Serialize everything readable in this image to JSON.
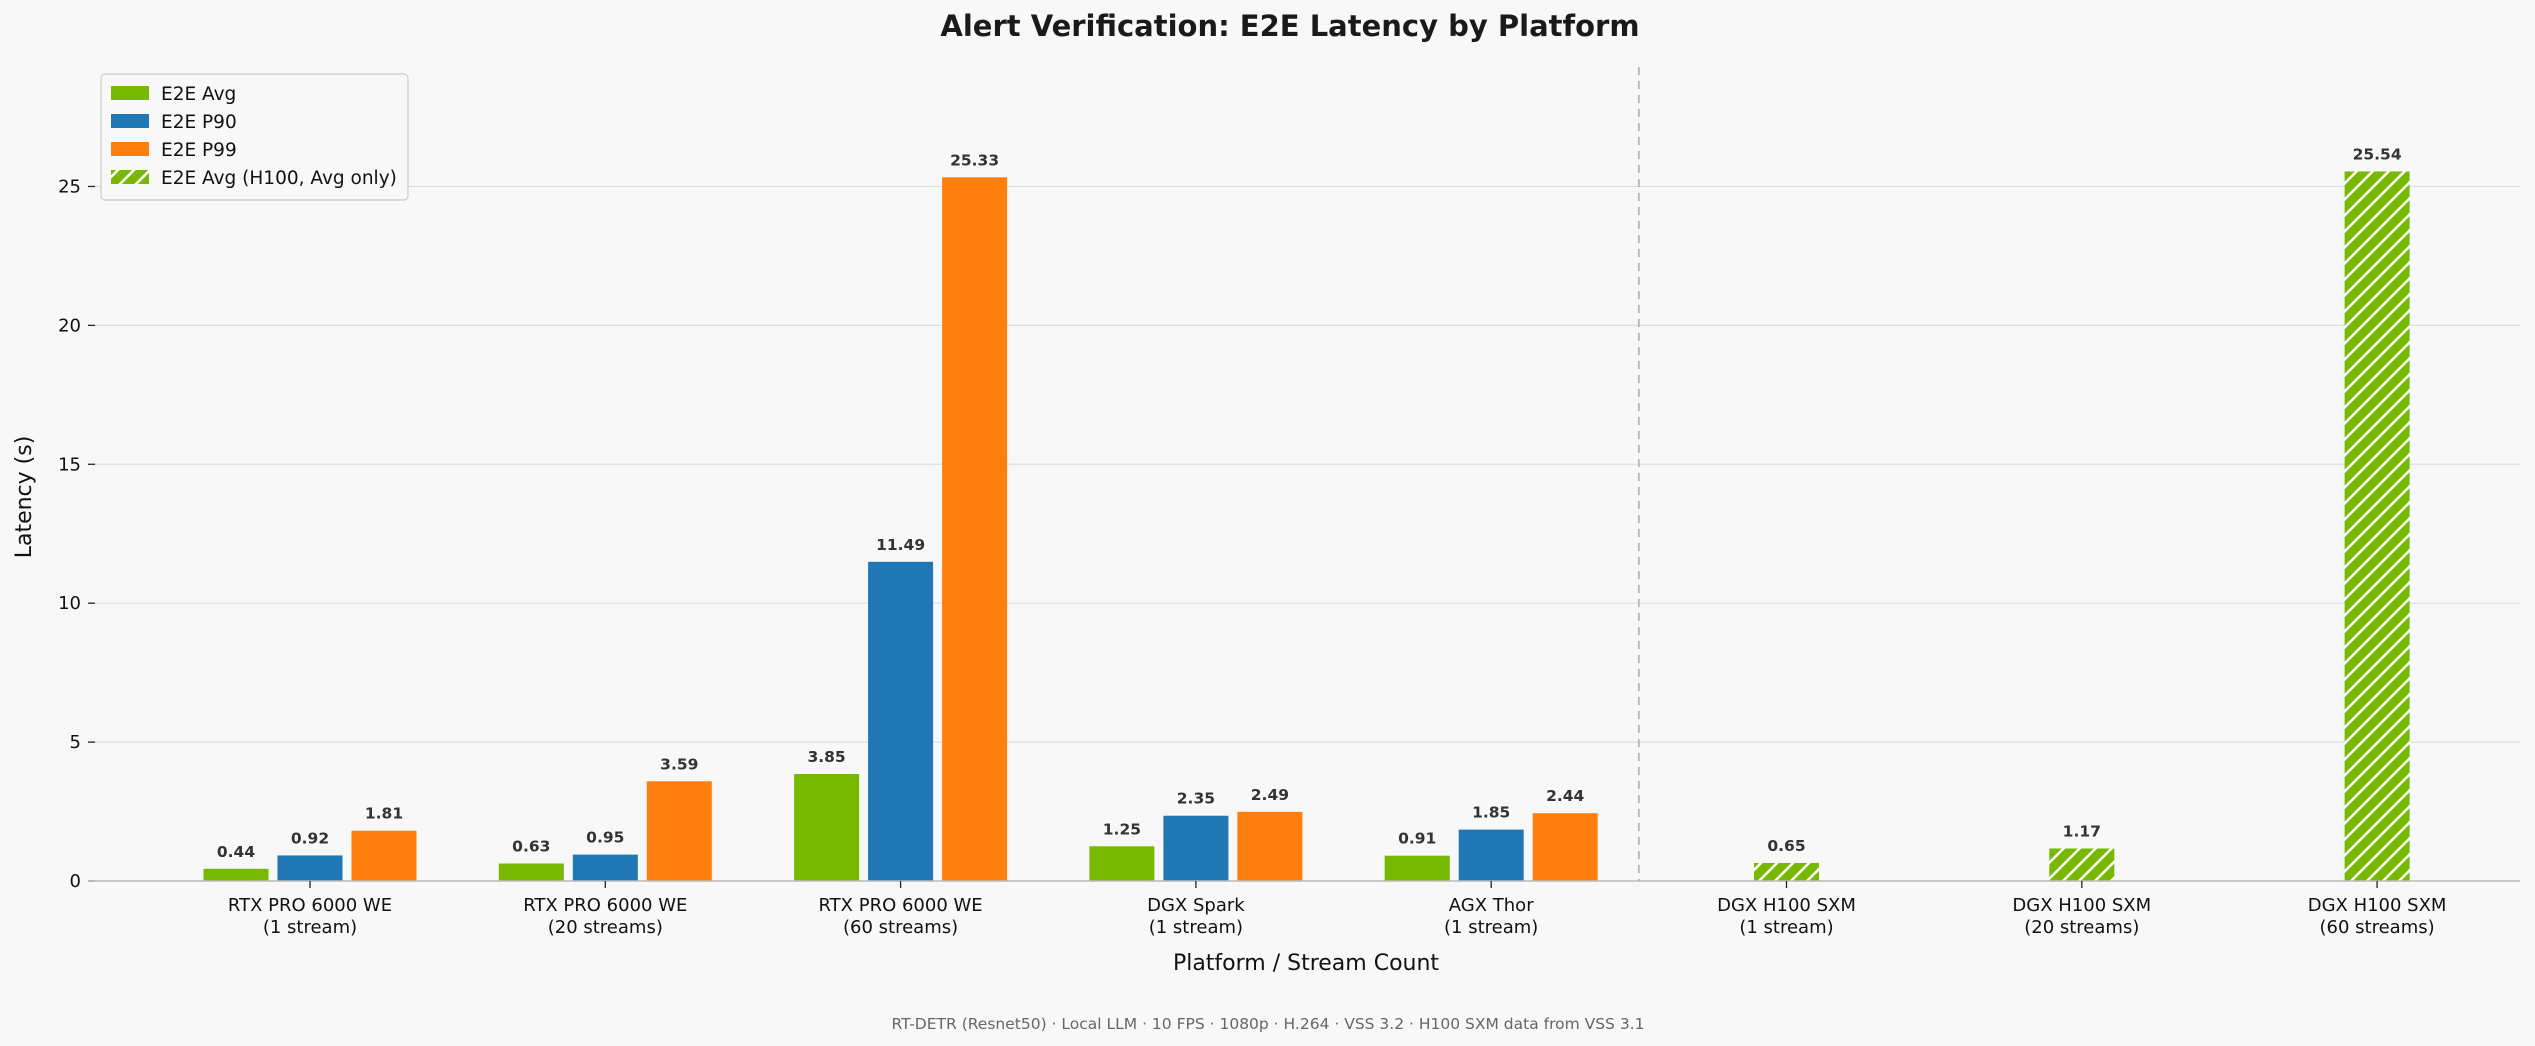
{
  "chart_data": {
    "type": "bar",
    "title": "Alert Verification: E2E Latency by Platform",
    "xlabel": "Platform / Stream Count",
    "ylabel": "Latency (s)",
    "ylim": [
      0,
      29.3
    ],
    "yticks": [
      0,
      5,
      10,
      15,
      20,
      25
    ],
    "grid": "horizontal",
    "legend_position": "top-left",
    "categories": [
      [
        "RTX PRO 6000 WE",
        "(1 stream)"
      ],
      [
        "RTX PRO 6000 WE",
        "(20 streams)"
      ],
      [
        "RTX PRO 6000 WE",
        "(60 streams)"
      ],
      [
        "DGX Spark",
        "(1 stream)"
      ],
      [
        "AGX Thor",
        "(1 stream)"
      ],
      [
        "DGX H100 SXM",
        "(1 stream)"
      ],
      [
        "DGX H100 SXM",
        "(20 streams)"
      ],
      [
        "DGX H100 SXM",
        "(60 streams)"
      ]
    ],
    "series": [
      {
        "name": "E2E Avg",
        "color": "#76b900",
        "values": [
          0.44,
          0.63,
          3.85,
          1.25,
          0.91,
          null,
          null,
          null
        ]
      },
      {
        "name": "E2E P90",
        "color": "#1f77b4",
        "values": [
          0.92,
          0.95,
          11.49,
          2.35,
          1.85,
          null,
          null,
          null
        ]
      },
      {
        "name": "E2E P99",
        "color": "#ff7f0e",
        "values": [
          1.81,
          3.59,
          25.33,
          2.49,
          2.44,
          null,
          null,
          null
        ]
      },
      {
        "name": "E2E Avg (H100, Avg only)",
        "color": "#76b900",
        "pattern": "hatched",
        "values": [
          null,
          null,
          null,
          null,
          null,
          0.65,
          1.17,
          25.54
        ]
      }
    ],
    "separator_after_category": 4,
    "footnote": "RT-DETR (Resnet50)  ·  Local LLM  ·  10 FPS  ·  1080p  ·  H.264  ·  VSS 3.2  ·  H100 SXM data from VSS 3.1"
  }
}
